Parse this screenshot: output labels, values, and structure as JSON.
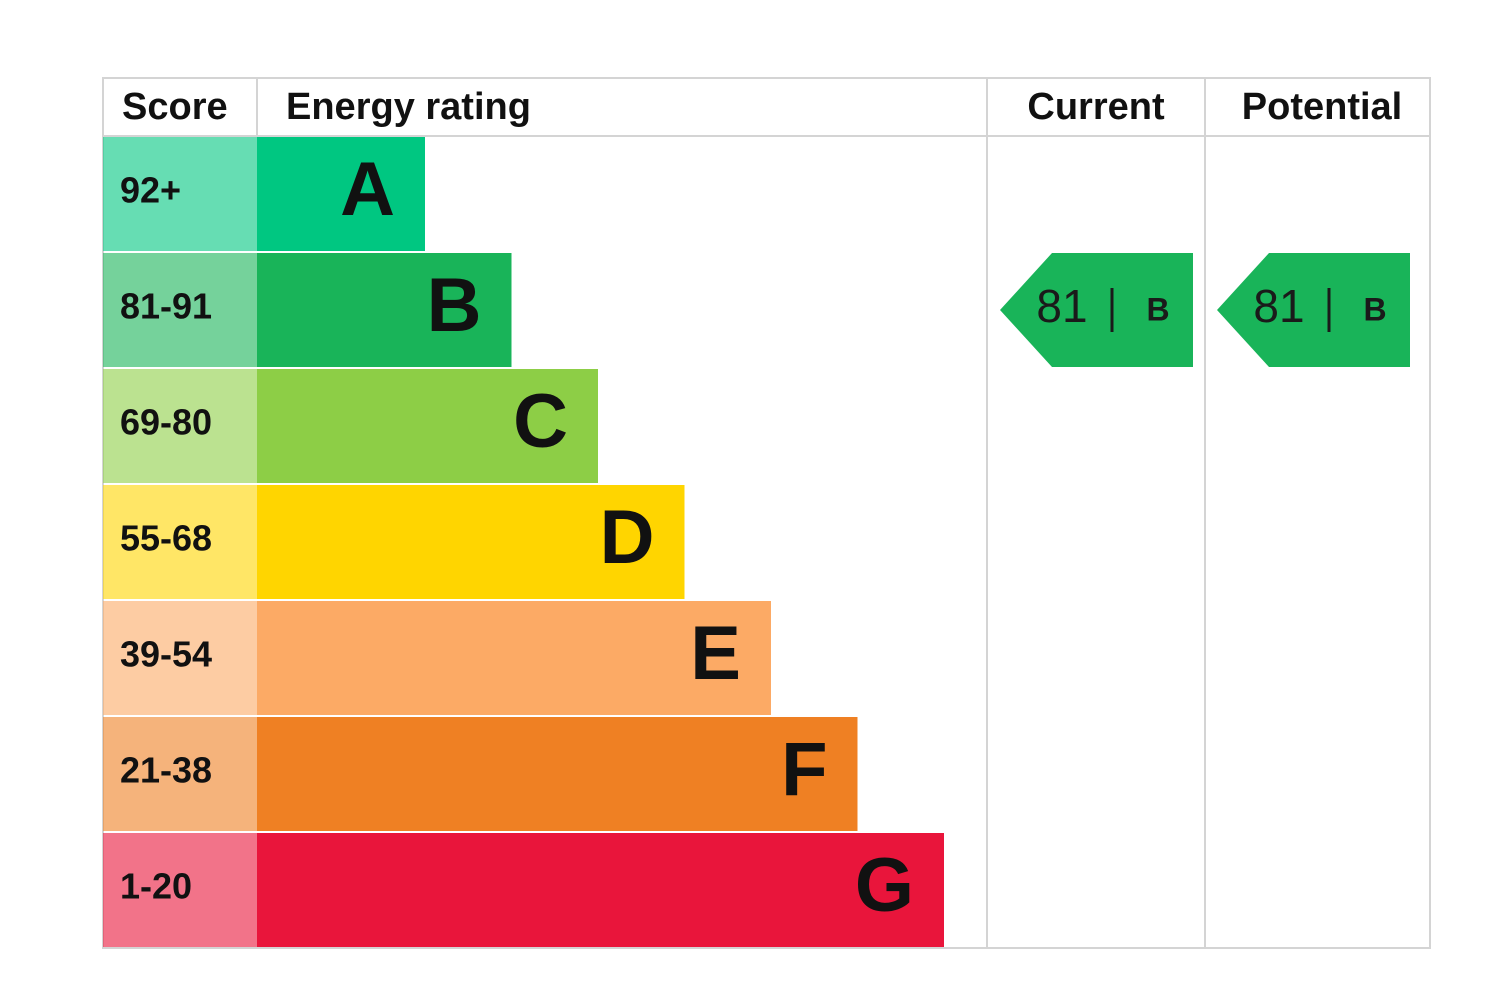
{
  "header": {
    "score": "Score",
    "rating": "Energy rating",
    "current": "Current",
    "potential": "Potential"
  },
  "rows": [
    {
      "score": "92+",
      "band": "A",
      "color": "#00c781"
    },
    {
      "score": "81-91",
      "band": "B",
      "color": "#19b459"
    },
    {
      "score": "69-80",
      "band": "C",
      "color": "#8dce46"
    },
    {
      "score": "55-68",
      "band": "D",
      "color": "#ffd500"
    },
    {
      "score": "39-54",
      "band": "E",
      "color": "#fcaa65"
    },
    {
      "score": "21-38",
      "band": "F",
      "color": "#ef8023"
    },
    {
      "score": "1-20",
      "band": "G",
      "color": "#e9153b"
    }
  ],
  "current": {
    "value": 81,
    "band": "B"
  },
  "potential": {
    "value": 81,
    "band": "B"
  }
}
